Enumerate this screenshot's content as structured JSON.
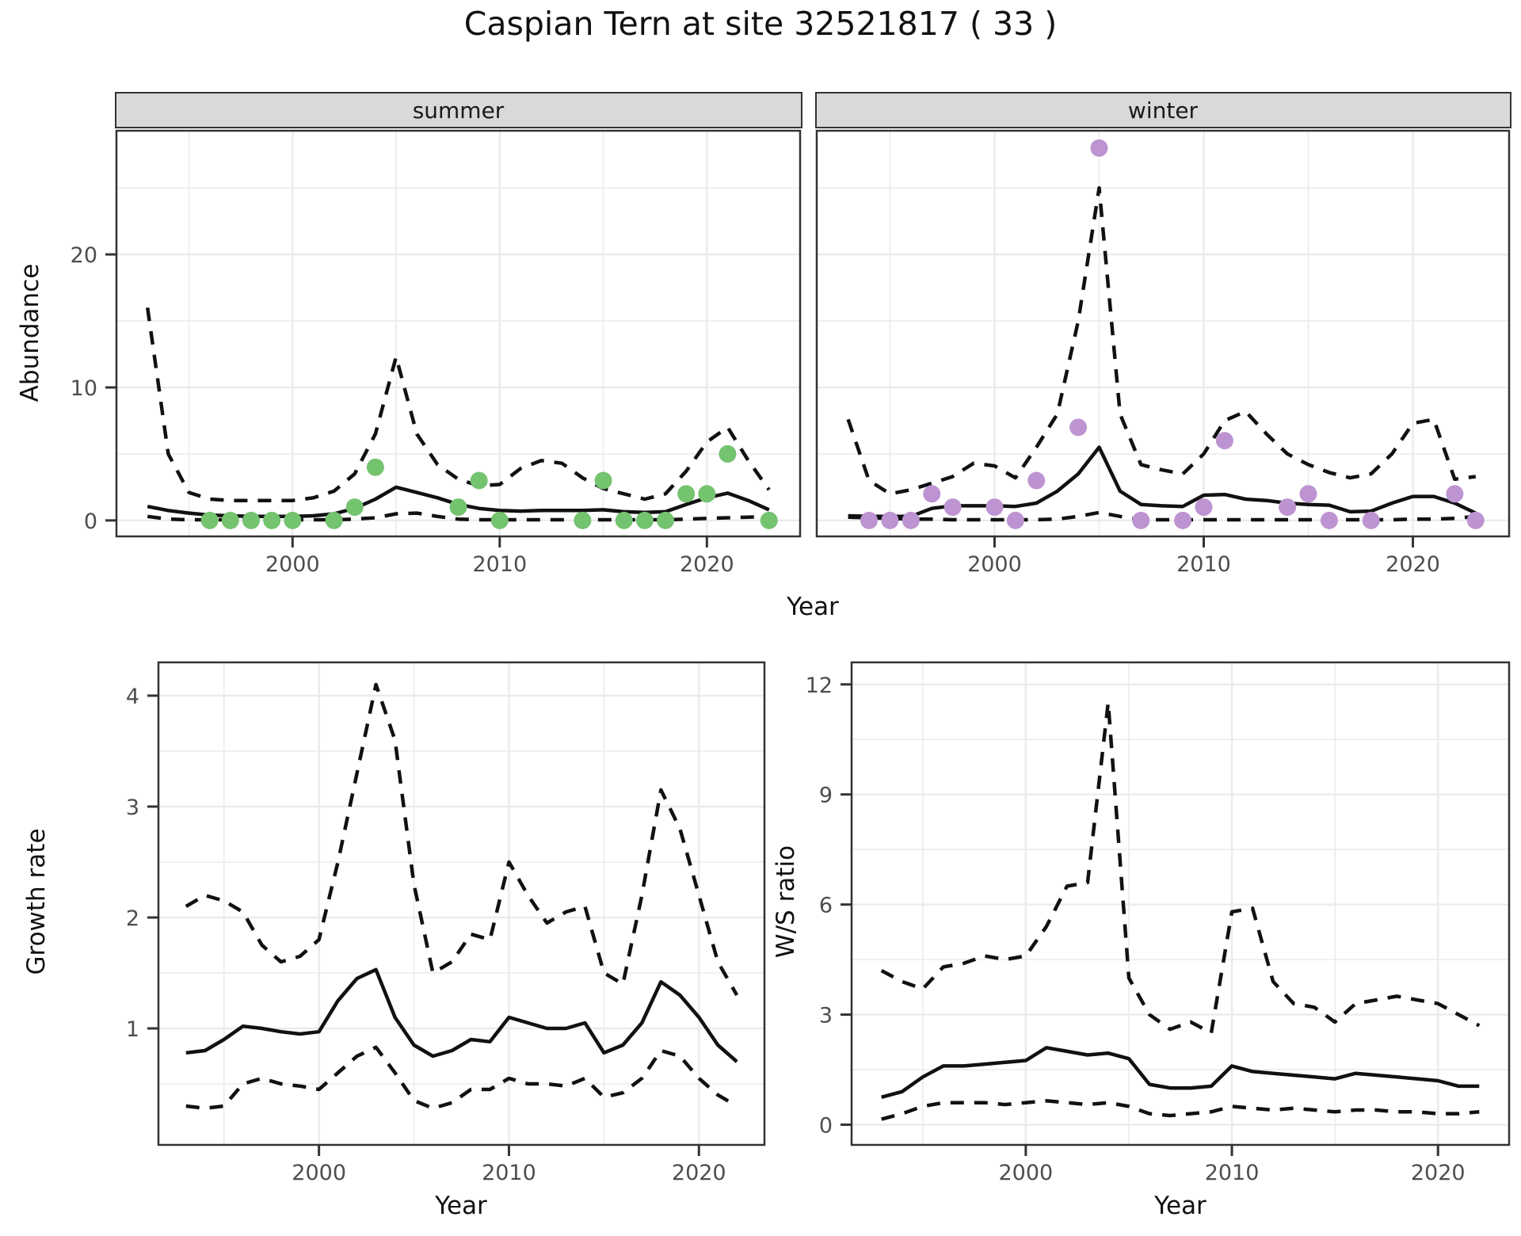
{
  "title": "Caspian Tern at site 32521817 ( 33 )",
  "facets": {
    "summer": "summer",
    "winter": "winter"
  },
  "axes": {
    "abundance": "Abundance",
    "year_top": "Year",
    "growth_rate": "Growth rate",
    "ws_ratio": "W/S ratio",
    "year_growth": "Year",
    "year_ws": "Year"
  },
  "colors": {
    "summer_points": "#74c36f",
    "winter_points": "#bd94d1",
    "line": "#111111",
    "grid": "#ebebeb",
    "panel_border": "#333333",
    "strip_bg": "#d9d9d9",
    "axis_text": "#4d4d4d",
    "tick": "#333333"
  },
  "chart_data": [
    {
      "id": "summer",
      "type": "line",
      "facet": "summer",
      "xlabel": "Year",
      "ylabel": "Abundance",
      "xlim": [
        1991.5,
        2024.5
      ],
      "ylim": [
        -1.2,
        29.3
      ],
      "xticks": [
        2000,
        2010,
        2020
      ],
      "yticks": [
        0,
        10,
        20
      ],
      "yticklabels": [
        "0",
        "10",
        "20"
      ],
      "legend": "none",
      "grid": true,
      "x": [
        1993,
        1994,
        1995,
        1996,
        1997,
        1998,
        1999,
        2000,
        2001,
        2002,
        2003,
        2004,
        2005,
        2006,
        2007,
        2008,
        2009,
        2010,
        2011,
        2012,
        2013,
        2014,
        2015,
        2016,
        2017,
        2018,
        2019,
        2020,
        2021,
        2022,
        2023
      ],
      "series": [
        {
          "name": "median",
          "style": "solid",
          "values": [
            1.05,
            0.75,
            0.55,
            0.4,
            0.35,
            0.3,
            0.3,
            0.3,
            0.35,
            0.5,
            0.9,
            1.6,
            2.5,
            2.1,
            1.7,
            1.2,
            0.9,
            0.75,
            0.7,
            0.75,
            0.75,
            0.75,
            0.8,
            0.65,
            0.6,
            0.65,
            1.2,
            1.7,
            2.05,
            1.5,
            0.8
          ]
        },
        {
          "name": "upper_ci",
          "style": "dashed",
          "values": [
            16,
            5,
            2.1,
            1.6,
            1.5,
            1.5,
            1.5,
            1.5,
            1.7,
            2.2,
            3.5,
            6.5,
            12.3,
            6.5,
            4.2,
            3.1,
            2.6,
            2.7,
            3.9,
            4.5,
            4.3,
            3.2,
            2.4,
            2.0,
            1.6,
            2.0,
            3.7,
            5.9,
            7.0,
            4.5,
            2.3
          ]
        },
        {
          "name": "lower_ci",
          "style": "dashed",
          "values": [
            0.3,
            0.1,
            0.05,
            0.05,
            0.05,
            0.05,
            0.05,
            0.05,
            0.05,
            0.05,
            0.1,
            0.2,
            0.5,
            0.55,
            0.3,
            0.1,
            0.05,
            0.05,
            0.05,
            0.05,
            0.05,
            0.05,
            0.05,
            0.05,
            0.05,
            0.05,
            0.1,
            0.15,
            0.2,
            0.25,
            0.3
          ]
        }
      ],
      "points": {
        "color": "summer_points",
        "data": [
          [
            1996,
            0
          ],
          [
            1997,
            0
          ],
          [
            1998,
            0
          ],
          [
            1999,
            0
          ],
          [
            2000,
            0
          ],
          [
            2002,
            0
          ],
          [
            2003,
            1
          ],
          [
            2004,
            4
          ],
          [
            2008,
            1
          ],
          [
            2009,
            3
          ],
          [
            2010,
            0
          ],
          [
            2014,
            0
          ],
          [
            2015,
            3
          ],
          [
            2016,
            0
          ],
          [
            2017,
            0
          ],
          [
            2018,
            0
          ],
          [
            2019,
            2
          ],
          [
            2020,
            2
          ],
          [
            2021,
            5
          ],
          [
            2023,
            0
          ]
        ]
      }
    },
    {
      "id": "winter",
      "type": "line",
      "facet": "winter",
      "xlabel": "Year",
      "ylabel": "Abundance",
      "xlim": [
        1991.5,
        2024.6
      ],
      "ylim": [
        -1.2,
        29.3
      ],
      "xticks": [
        2000,
        2010,
        2020
      ],
      "yticks": [
        0,
        10,
        20
      ],
      "yticklabels": [],
      "legend": "none",
      "grid": true,
      "x": [
        1993,
        1994,
        1995,
        1996,
        1997,
        1998,
        1999,
        2000,
        2001,
        2002,
        2003,
        2004,
        2005,
        2006,
        2007,
        2008,
        2009,
        2010,
        2011,
        2012,
        2013,
        2014,
        2015,
        2016,
        2017,
        2018,
        2019,
        2020,
        2021,
        2022,
        2023
      ],
      "series": [
        {
          "name": "median",
          "style": "solid",
          "values": [
            0.35,
            0.3,
            0.3,
            0.3,
            0.9,
            1.1,
            1.1,
            1.1,
            1.05,
            1.3,
            2.2,
            3.5,
            5.5,
            2.2,
            1.2,
            1.1,
            1.05,
            1.9,
            1.95,
            1.6,
            1.5,
            1.3,
            1.2,
            1.15,
            0.65,
            0.7,
            1.3,
            1.8,
            1.8,
            1.3,
            0.55
          ]
        },
        {
          "name": "upper_ci",
          "style": "dashed",
          "values": [
            7.6,
            3.0,
            2.0,
            2.3,
            2.8,
            3.3,
            4.3,
            4.1,
            3.2,
            5.5,
            8.0,
            15.0,
            25.0,
            8.0,
            4.2,
            3.8,
            3.5,
            5.0,
            7.5,
            8.2,
            6.5,
            5.0,
            4.2,
            3.6,
            3.2,
            3.5,
            5.0,
            7.3,
            7.6,
            3.1,
            3.3
          ]
        },
        {
          "name": "lower_ci",
          "style": "dashed",
          "values": [
            0.25,
            0.2,
            0.15,
            0.1,
            0.1,
            0.05,
            0.05,
            0.05,
            0.05,
            0.05,
            0.1,
            0.3,
            0.6,
            0.3,
            0.05,
            0.05,
            0.05,
            0.05,
            0.05,
            0.05,
            0.05,
            0.05,
            0.05,
            0.05,
            0.05,
            0.05,
            0.05,
            0.1,
            0.1,
            0.15,
            0.3
          ]
        }
      ],
      "points": {
        "color": "winter_points",
        "data": [
          [
            1994,
            0
          ],
          [
            1995,
            0
          ],
          [
            1996,
            0
          ],
          [
            1997,
            2
          ],
          [
            1998,
            1
          ],
          [
            2000,
            1
          ],
          [
            2001,
            0
          ],
          [
            2002,
            3
          ],
          [
            2004,
            7
          ],
          [
            2005,
            28
          ],
          [
            2007,
            0
          ],
          [
            2009,
            0
          ],
          [
            2010,
            1
          ],
          [
            2011,
            6
          ],
          [
            2014,
            1
          ],
          [
            2015,
            2
          ],
          [
            2016,
            0
          ],
          [
            2018,
            0
          ],
          [
            2022,
            2
          ],
          [
            2023,
            0
          ]
        ]
      }
    },
    {
      "id": "growth",
      "type": "line",
      "title": "",
      "xlabel": "Year",
      "ylabel": "Growth rate",
      "xlim": [
        1991.55,
        2023.45
      ],
      "ylim": [
        -0.05,
        4.3
      ],
      "xticks": [
        2000,
        2010,
        2020
      ],
      "yticks": [
        1,
        2,
        3,
        4
      ],
      "yticklabels": [
        "1",
        "2",
        "3",
        "4"
      ],
      "legend": "none",
      "grid": true,
      "x": [
        1993,
        1994,
        1995,
        1996,
        1997,
        1998,
        1999,
        2000,
        2001,
        2002,
        2003,
        2004,
        2005,
        2006,
        2007,
        2008,
        2009,
        2010,
        2011,
        2012,
        2013,
        2014,
        2015,
        2016,
        2017,
        2018,
        2019,
        2020,
        2021,
        2022
      ],
      "series": [
        {
          "name": "median",
          "style": "solid",
          "values": [
            0.78,
            0.8,
            0.9,
            1.02,
            1.0,
            0.97,
            0.95,
            0.97,
            1.25,
            1.45,
            1.53,
            1.1,
            0.85,
            0.75,
            0.8,
            0.9,
            0.88,
            1.1,
            1.05,
            1.0,
            1.0,
            1.05,
            0.78,
            0.85,
            1.05,
            1.42,
            1.3,
            1.1,
            0.85,
            0.7
          ]
        },
        {
          "name": "upper_ci",
          "style": "dashed",
          "values": [
            2.1,
            2.2,
            2.15,
            2.05,
            1.75,
            1.6,
            1.65,
            1.8,
            2.5,
            3.3,
            4.1,
            3.6,
            2.3,
            1.5,
            1.6,
            1.85,
            1.8,
            2.5,
            2.2,
            1.95,
            2.05,
            2.1,
            1.5,
            1.4,
            2.2,
            3.15,
            2.8,
            2.2,
            1.6,
            1.3
          ]
        },
        {
          "name": "lower_ci",
          "style": "dashed",
          "values": [
            0.3,
            0.28,
            0.3,
            0.5,
            0.55,
            0.5,
            0.48,
            0.45,
            0.6,
            0.75,
            0.83,
            0.6,
            0.35,
            0.28,
            0.33,
            0.45,
            0.45,
            0.55,
            0.5,
            0.5,
            0.48,
            0.55,
            0.38,
            0.42,
            0.55,
            0.8,
            0.75,
            0.55,
            0.4,
            0.3
          ]
        }
      ],
      "points": {
        "color": "summer_points",
        "data": []
      }
    },
    {
      "id": "ws",
      "type": "line",
      "title": "",
      "xlabel": "Year",
      "ylabel": "W/S ratio",
      "xlim": [
        1991.55,
        2023.45
      ],
      "ylim": [
        -0.55,
        12.6
      ],
      "xticks": [
        2000,
        2010,
        2020
      ],
      "yticks": [
        0,
        3,
        6,
        9,
        12
      ],
      "yticklabels": [
        "0",
        "3",
        "6",
        "9",
        "12"
      ],
      "legend": "none",
      "grid": true,
      "x": [
        1993,
        1994,
        1995,
        1996,
        1997,
        1998,
        1999,
        2000,
        2001,
        2002,
        2003,
        2004,
        2005,
        2006,
        2007,
        2008,
        2009,
        2010,
        2011,
        2012,
        2013,
        2014,
        2015,
        2016,
        2017,
        2018,
        2019,
        2020,
        2021,
        2022
      ],
      "series": [
        {
          "name": "median",
          "style": "solid",
          "values": [
            0.75,
            0.9,
            1.3,
            1.6,
            1.6,
            1.65,
            1.7,
            1.75,
            2.1,
            2.0,
            1.9,
            1.95,
            1.8,
            1.1,
            1.0,
            1.0,
            1.05,
            1.6,
            1.45,
            1.4,
            1.35,
            1.3,
            1.25,
            1.4,
            1.35,
            1.3,
            1.25,
            1.2,
            1.05,
            1.05
          ]
        },
        {
          "name": "upper_ci",
          "style": "dashed",
          "values": [
            4.2,
            3.9,
            3.7,
            4.3,
            4.4,
            4.6,
            4.5,
            4.6,
            5.4,
            6.5,
            6.6,
            11.5,
            4.0,
            3.0,
            2.6,
            2.8,
            2.5,
            5.8,
            5.9,
            3.9,
            3.3,
            3.2,
            2.8,
            3.3,
            3.4,
            3.5,
            3.4,
            3.3,
            3.0,
            2.7
          ]
        },
        {
          "name": "lower_ci",
          "style": "dashed",
          "values": [
            0.15,
            0.3,
            0.5,
            0.6,
            0.6,
            0.6,
            0.55,
            0.6,
            0.65,
            0.6,
            0.55,
            0.6,
            0.5,
            0.3,
            0.25,
            0.3,
            0.35,
            0.5,
            0.45,
            0.4,
            0.45,
            0.4,
            0.35,
            0.4,
            0.4,
            0.35,
            0.35,
            0.3,
            0.3,
            0.35
          ]
        }
      ],
      "points": {
        "color": "winter_points",
        "data": []
      }
    }
  ]
}
